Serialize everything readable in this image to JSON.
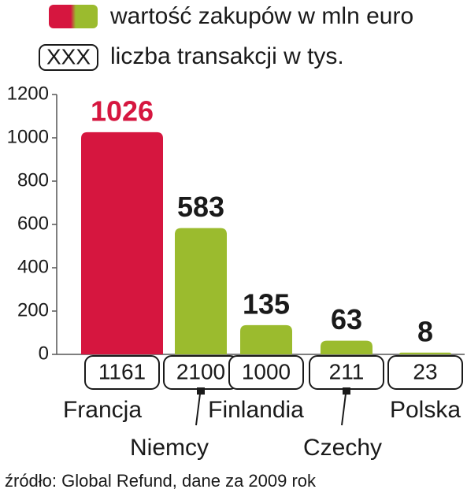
{
  "chart_data": {
    "type": "bar",
    "categories": [
      "Francja",
      "Niemcy",
      "Finlandia",
      "Czechy",
      "Polska"
    ],
    "series": [
      {
        "name": "wartość zakupów w mln euro",
        "values": [
          1026,
          583,
          135,
          63,
          8
        ],
        "colors": [
          "#d6163f",
          "#9bbb2e",
          "#9bbb2e",
          "#9bbb2e",
          "#9bbb2e"
        ]
      }
    ],
    "transactions": {
      "name": "liczba transakcji w tys.",
      "symbol": "XXX",
      "values": [
        1161,
        2100,
        1000,
        211,
        23
      ]
    },
    "ylim": [
      0,
      1200
    ],
    "yticks": [
      0,
      200,
      400,
      600,
      800,
      1000,
      1200
    ],
    "source": "źródło: Global Refund, dane za 2009 rok"
  }
}
